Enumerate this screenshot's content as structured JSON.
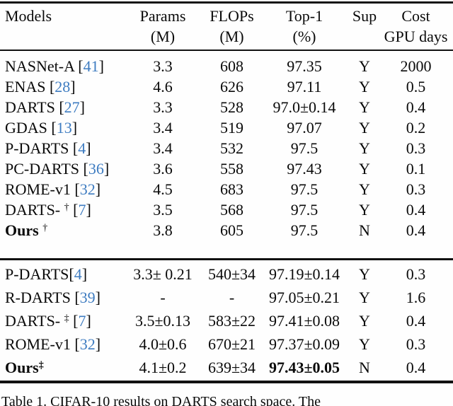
{
  "colors": {
    "citation": "#3e7cc1",
    "text": "#0a0a0a",
    "rule": "#111111",
    "background": "#fefefe"
  },
  "table": {
    "columns": [
      {
        "label": "Models",
        "sublabel": ""
      },
      {
        "label": "Params",
        "sublabel": "(M)"
      },
      {
        "label": "FLOPs",
        "sublabel": "(M)"
      },
      {
        "label": "Top-1",
        "sublabel": "(%)"
      },
      {
        "label": "Sup",
        "sublabel": ""
      },
      {
        "label": "Cost",
        "sublabel": "GPU days"
      }
    ],
    "sections": [
      {
        "rows": [
          {
            "model": {
              "name": "NASNet-A",
              "bold": false,
              "mark": "",
              "mark_space": false,
              "cite": "41",
              "cite_space": true
            },
            "params": "3.3",
            "flops": "608",
            "top1": "97.35",
            "top1_bold": false,
            "sup": "Y",
            "cost": "2000"
          },
          {
            "model": {
              "name": "ENAS",
              "bold": false,
              "mark": "",
              "mark_space": false,
              "cite": "28",
              "cite_space": true
            },
            "params": "4.6",
            "flops": "626",
            "top1": "97.11",
            "top1_bold": false,
            "sup": "Y",
            "cost": "0.5"
          },
          {
            "model": {
              "name": "DARTS",
              "bold": false,
              "mark": "",
              "mark_space": false,
              "cite": "27",
              "cite_space": true
            },
            "params": "3.3",
            "flops": "528",
            "top1": "97.0±0.14",
            "top1_bold": false,
            "sup": "Y",
            "cost": "0.4"
          },
          {
            "model": {
              "name": "GDAS",
              "bold": false,
              "mark": "",
              "mark_space": false,
              "cite": "13",
              "cite_space": true
            },
            "params": "3.4",
            "flops": "519",
            "top1": "97.07",
            "top1_bold": false,
            "sup": "Y",
            "cost": "0.2"
          },
          {
            "model": {
              "name": "P-DARTS",
              "bold": false,
              "mark": "",
              "mark_space": false,
              "cite": "4",
              "cite_space": true
            },
            "params": "3.4",
            "flops": "532",
            "top1": "97.5",
            "top1_bold": false,
            "sup": "Y",
            "cost": "0.3"
          },
          {
            "model": {
              "name": "PC-DARTS",
              "bold": false,
              "mark": "",
              "mark_space": false,
              "cite": "36",
              "cite_space": true
            },
            "params": "3.6",
            "flops": "558",
            "top1": "97.43",
            "top1_bold": false,
            "sup": "Y",
            "cost": "0.1"
          },
          {
            "model": {
              "name": "ROME-v1",
              "bold": false,
              "mark": "",
              "mark_space": false,
              "cite": "32",
              "cite_space": true
            },
            "params": "4.5",
            "flops": "683",
            "top1": "97.5",
            "top1_bold": false,
            "sup": "Y",
            "cost": "0.3"
          },
          {
            "model": {
              "name": "DARTS-",
              "bold": false,
              "mark": "†",
              "mark_space": true,
              "cite": "7",
              "cite_space": true
            },
            "params": "3.5",
            "flops": "568",
            "top1": "97.5",
            "top1_bold": false,
            "sup": "Y",
            "cost": "0.4"
          },
          {
            "model": {
              "name": "Ours",
              "bold": true,
              "mark": "†",
              "mark_space": true,
              "cite": "",
              "cite_space": false
            },
            "params": "3.8",
            "flops": "605",
            "top1": "97.5",
            "top1_bold": false,
            "sup": "N",
            "cost": "0.4"
          }
        ]
      },
      {
        "rows": [
          {
            "model": {
              "name": "P-DARTS",
              "bold": false,
              "mark": "",
              "mark_space": false,
              "cite": "4",
              "cite_space": false
            },
            "params": "3.3± 0.21",
            "flops": "540±34",
            "top1": "97.19±0.14",
            "top1_bold": false,
            "sup": "Y",
            "cost": "0.3"
          },
          {
            "model": {
              "name": "R-DARTS",
              "bold": false,
              "mark": "",
              "mark_space": false,
              "cite": "39",
              "cite_space": true
            },
            "params": "-",
            "flops": "-",
            "top1": "97.05±0.21",
            "top1_bold": false,
            "sup": "Y",
            "cost": "1.6"
          },
          {
            "model": {
              "name": "DARTS-",
              "bold": false,
              "mark": "‡",
              "mark_space": true,
              "cite": "7",
              "cite_space": true
            },
            "params": "3.5±0.13",
            "flops": "583±22",
            "top1": "97.41±0.08",
            "top1_bold": false,
            "sup": "Y",
            "cost": "0.4"
          },
          {
            "model": {
              "name": "ROME-v1",
              "bold": false,
              "mark": "",
              "mark_space": false,
              "cite": "32",
              "cite_space": true
            },
            "params": "4.0±0.6",
            "flops": "670±21",
            "top1": "97.37±0.09",
            "top1_bold": false,
            "sup": "Y",
            "cost": "0.3"
          },
          {
            "model": {
              "name": "Ours",
              "bold": true,
              "mark": "‡",
              "mark_space": false,
              "cite": "",
              "cite_space": false
            },
            "params": "4.1±0.2",
            "flops": "639±34",
            "top1": "97.43±0.05",
            "top1_bold": true,
            "sup": "N",
            "cost": "0.4"
          }
        ]
      }
    ]
  },
  "caption": "Table 1. CIFAR-10 results on DARTS search space. The"
}
